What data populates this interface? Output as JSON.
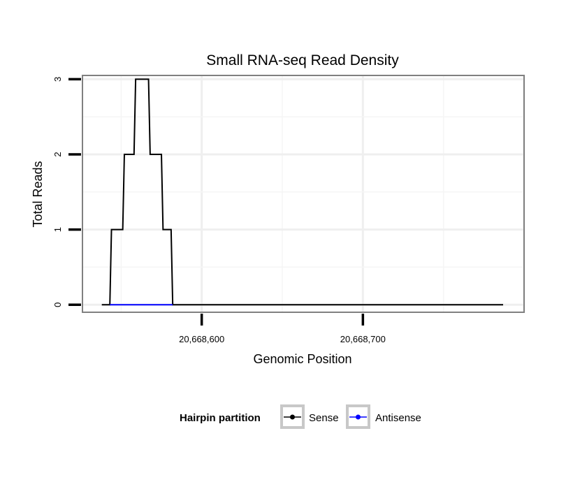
{
  "chart_data": {
    "type": "line",
    "title": "Small RNA-seq Read Density",
    "xlabel": "Genomic Position",
    "ylabel": "Total Reads",
    "xlim": [
      20668526,
      20668800
    ],
    "ylim": [
      -0.1,
      3.05
    ],
    "x_ticks": [
      20668600,
      20668700
    ],
    "x_tick_labels": [
      "20,668,600",
      "20,668,700"
    ],
    "y_ticks": [
      0,
      1,
      2,
      3
    ],
    "y_tick_labels": [
      "0",
      "1",
      "2",
      "3"
    ],
    "grid": true,
    "legend_position": "bottom",
    "legend_title": "Hairpin partition",
    "series": [
      {
        "name": "Sense",
        "color": "#000000",
        "step": true,
        "points": [
          [
            20668538,
            0
          ],
          [
            20668543,
            0
          ],
          [
            20668544,
            1
          ],
          [
            20668551,
            1
          ],
          [
            20668552,
            2
          ],
          [
            20668558,
            2
          ],
          [
            20668559,
            3
          ],
          [
            20668567,
            3
          ],
          [
            20668568,
            2
          ],
          [
            20668575,
            2
          ],
          [
            20668576,
            1
          ],
          [
            20668581,
            1
          ],
          [
            20668582,
            0
          ],
          [
            20668787,
            0
          ]
        ]
      },
      {
        "name": "Antisense",
        "color": "#0000ff",
        "step": true,
        "points": [
          [
            20668543,
            0
          ],
          [
            20668582,
            0
          ]
        ]
      }
    ]
  }
}
